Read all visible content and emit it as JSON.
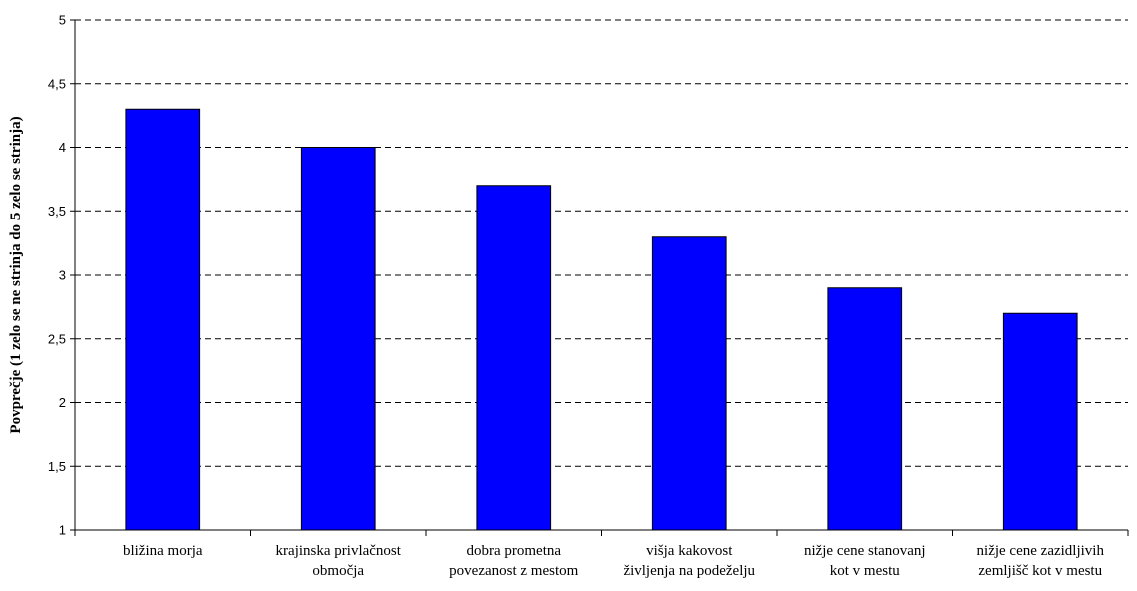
{
  "chart_data": {
    "type": "bar",
    "title": "",
    "xlabel": "",
    "ylabel": "Povprečje (1 zelo se ne strinja do 5 zelo se strinja)",
    "ylim": [
      1,
      5
    ],
    "yticks": [
      1,
      1.5,
      2,
      2.5,
      3,
      3.5,
      4,
      4.5,
      5
    ],
    "ytick_labels": [
      "1",
      "1,5",
      "2",
      "2,5",
      "3",
      "3,5",
      "4",
      "4,5",
      "5"
    ],
    "grid": "horizontal dashed",
    "categories": [
      [
        "bližina morja"
      ],
      [
        "krajinska privlačnost",
        "območja"
      ],
      [
        "dobra prometna",
        "povezanost z mestom"
      ],
      [
        "višja kakovost",
        "življenja na podeželju"
      ],
      [
        "nižje cene stanovanj",
        "kot v mestu"
      ],
      [
        "nižje cene zazidljivih",
        "zemljišč kot v mestu"
      ]
    ],
    "values": [
      4.3,
      4.0,
      3.7,
      3.3,
      2.9,
      2.7
    ],
    "bar_color": "#0000ff"
  }
}
